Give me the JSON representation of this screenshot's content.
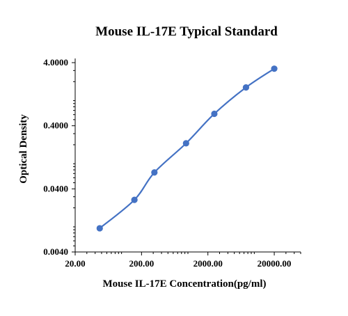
{
  "chart_data": {
    "type": "line",
    "title": "Mouse IL-17E Typical Standard",
    "xlabel": "Mouse IL-17E  Concentration(pg/ml)",
    "ylabel": "Optical Density",
    "x_scale": "log",
    "y_scale": "log",
    "xlim": [
      20,
      50000
    ],
    "ylim": [
      0.004,
      4
    ],
    "x_ticks": [
      "20.00",
      "200.00",
      "2000.00",
      "20000.00"
    ],
    "y_ticks": [
      "0.0040",
      "0.0400",
      "0.4000",
      "4.0000"
    ],
    "grid": false,
    "legend": "none",
    "line_color": "#4472c4",
    "series": [
      {
        "x": [
          46.88,
          156.25,
          312.5,
          937.5,
          2500,
          7500,
          20000
        ],
        "y": [
          0.0095,
          0.0268,
          0.0728,
          0.211,
          0.619,
          1.62,
          3.21
        ]
      }
    ]
  }
}
